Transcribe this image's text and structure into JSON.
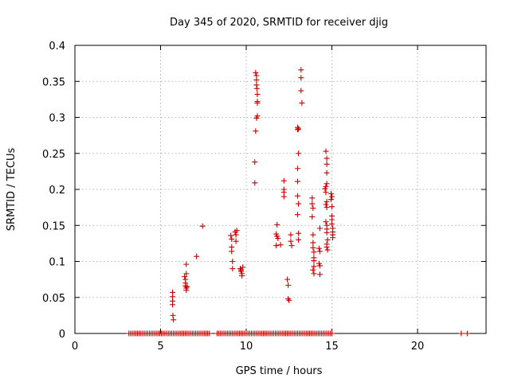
{
  "chart_data": {
    "type": "scatter",
    "title": "Day 345 of 2020, SRMTID for receiver djig",
    "xlabel": "GPS time / hours",
    "ylabel": "SRMTID / TECUs",
    "xlim": [
      0,
      24
    ],
    "ylim": [
      0,
      0.4
    ],
    "x_ticks": [
      0,
      5,
      10,
      15,
      20
    ],
    "x_tick_labels": [
      "0",
      "5",
      "10",
      "15",
      "20"
    ],
    "y_ticks": [
      0,
      0.05,
      0.1,
      0.15,
      0.2,
      0.25,
      0.3,
      0.35,
      0.4
    ],
    "y_tick_labels": [
      "0",
      "0.05",
      "0.1",
      "0.15",
      "0.2",
      "0.25",
      "0.3",
      "0.35",
      "0.4"
    ],
    "grid": true,
    "marker": "+",
    "colors": {
      "series": "#cc0000",
      "grid": "#a0a0a0",
      "frame": "#000000"
    },
    "series": [
      {
        "name": "djig",
        "points": [
          [
            5.7,
            0.057
          ],
          [
            5.7,
            0.051
          ],
          [
            5.7,
            0.045
          ],
          [
            5.7,
            0.04
          ],
          [
            5.72,
            0.025
          ],
          [
            5.75,
            0.019
          ],
          [
            6.4,
            0.079
          ],
          [
            6.45,
            0.075
          ],
          [
            6.45,
            0.07
          ],
          [
            6.45,
            0.066
          ],
          [
            6.5,
            0.063
          ],
          [
            6.5,
            0.06
          ],
          [
            6.5,
            0.083
          ],
          [
            6.5,
            0.096
          ],
          [
            6.55,
            0.065
          ],
          [
            7.1,
            0.107
          ],
          [
            7.45,
            0.149
          ],
          [
            9.1,
            0.136
          ],
          [
            9.15,
            0.131
          ],
          [
            9.15,
            0.12
          ],
          [
            9.15,
            0.114
          ],
          [
            9.2,
            0.1
          ],
          [
            9.2,
            0.09
          ],
          [
            9.35,
            0.141
          ],
          [
            9.4,
            0.137
          ],
          [
            9.4,
            0.128
          ],
          [
            9.45,
            0.143
          ],
          [
            9.65,
            0.09
          ],
          [
            9.7,
            0.088
          ],
          [
            9.7,
            0.086
          ],
          [
            9.75,
            0.083
          ],
          [
            9.75,
            0.08
          ],
          [
            9.8,
            0.092
          ],
          [
            10.55,
            0.362
          ],
          [
            10.6,
            0.358
          ],
          [
            10.6,
            0.352
          ],
          [
            10.6,
            0.345
          ],
          [
            10.62,
            0.34
          ],
          [
            10.65,
            0.332
          ],
          [
            10.65,
            0.322
          ],
          [
            10.65,
            0.32
          ],
          [
            10.65,
            0.302
          ],
          [
            10.6,
            0.299
          ],
          [
            10.55,
            0.281
          ],
          [
            10.5,
            0.238
          ],
          [
            10.5,
            0.209
          ],
          [
            11.8,
            0.151
          ],
          [
            11.75,
            0.138
          ],
          [
            11.8,
            0.135
          ],
          [
            11.85,
            0.132
          ],
          [
            11.75,
            0.122
          ],
          [
            12.0,
            0.123
          ],
          [
            12.2,
            0.212
          ],
          [
            12.2,
            0.2
          ],
          [
            12.2,
            0.196
          ],
          [
            12.2,
            0.19
          ],
          [
            12.4,
            0.075
          ],
          [
            12.45,
            0.067
          ],
          [
            12.45,
            0.048
          ],
          [
            12.5,
            0.046
          ],
          [
            12.6,
            0.137
          ],
          [
            12.6,
            0.128
          ],
          [
            12.65,
            0.122
          ],
          [
            13.0,
            0.286
          ],
          [
            13.0,
            0.283
          ],
          [
            13.05,
            0.284
          ],
          [
            13.05,
            0.25
          ],
          [
            13.0,
            0.229
          ],
          [
            13.0,
            0.211
          ],
          [
            13.0,
            0.191
          ],
          [
            13.05,
            0.18
          ],
          [
            13.0,
            0.165
          ],
          [
            13.05,
            0.139
          ],
          [
            13.05,
            0.13
          ],
          [
            13.2,
            0.366
          ],
          [
            13.2,
            0.355
          ],
          [
            13.2,
            0.337
          ],
          [
            13.25,
            0.32
          ],
          [
            13.85,
            0.188
          ],
          [
            13.85,
            0.18
          ],
          [
            13.9,
            0.174
          ],
          [
            13.85,
            0.162
          ],
          [
            13.9,
            0.137
          ],
          [
            13.9,
            0.126
          ],
          [
            13.9,
            0.119
          ],
          [
            13.95,
            0.113
          ],
          [
            13.95,
            0.105
          ],
          [
            13.95,
            0.101
          ],
          [
            13.95,
            0.093
          ],
          [
            13.9,
            0.088
          ],
          [
            13.95,
            0.083
          ],
          [
            14.25,
            0.097
          ],
          [
            14.3,
            0.094
          ],
          [
            14.3,
            0.082
          ],
          [
            14.25,
            0.118
          ],
          [
            14.3,
            0.114
          ],
          [
            14.3,
            0.146
          ],
          [
            14.65,
            0.253
          ],
          [
            14.7,
            0.243
          ],
          [
            14.7,
            0.235
          ],
          [
            14.7,
            0.223
          ],
          [
            14.7,
            0.208
          ],
          [
            14.65,
            0.204
          ],
          [
            14.6,
            0.201
          ],
          [
            14.65,
            0.196
          ],
          [
            14.7,
            0.183
          ],
          [
            14.65,
            0.179
          ],
          [
            14.7,
            0.175
          ],
          [
            14.65,
            0.155
          ],
          [
            14.7,
            0.15
          ],
          [
            14.7,
            0.145
          ],
          [
            14.7,
            0.14
          ],
          [
            14.75,
            0.13
          ],
          [
            14.7,
            0.124
          ],
          [
            14.7,
            0.12
          ],
          [
            14.75,
            0.116
          ],
          [
            14.95,
            0.194
          ],
          [
            15.0,
            0.19
          ],
          [
            14.95,
            0.186
          ],
          [
            15.0,
            0.176
          ],
          [
            15.0,
            0.163
          ],
          [
            15.0,
            0.158
          ],
          [
            15.0,
            0.152
          ],
          [
            15.05,
            0.146
          ],
          [
            15.05,
            0.141
          ],
          [
            15.05,
            0.137
          ],
          [
            15.05,
            0.133
          ],
          [
            22.55,
            0.0
          ],
          [
            22.9,
            0.0
          ]
        ],
        "zero_runs": [
          [
            3.15,
            7.85
          ],
          [
            8.3,
            15.0
          ]
        ],
        "zero_run_step": 0.1
      }
    ]
  }
}
